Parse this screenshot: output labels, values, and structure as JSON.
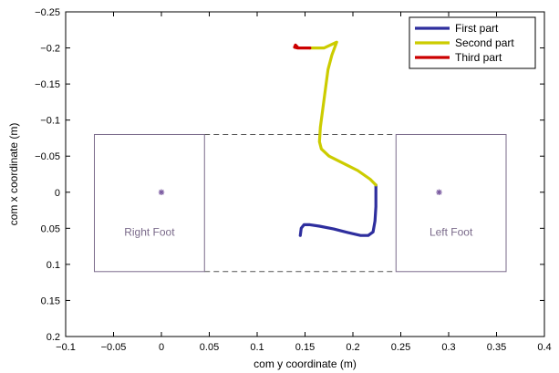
{
  "chart_data": {
    "type": "line",
    "xlabel": "com y coordinate (m)",
    "ylabel": "com x coordinate (m)",
    "xlim": [
      -0.1,
      0.4
    ],
    "ylim": [
      -0.25,
      0.2
    ],
    "y_reversed": true,
    "grid": false,
    "legend_position": "top-right",
    "x_ticks": [
      -0.1,
      -0.05,
      0,
      0.05,
      0.1,
      0.15,
      0.2,
      0.25,
      0.3,
      0.35,
      0.4
    ],
    "x_tick_labels": [
      "−0.1",
      "−0.05",
      "0",
      "0.05",
      "0.1",
      "0.15",
      "0.2",
      "0.25",
      "0.3",
      "0.35",
      "0.4"
    ],
    "y_ticks": [
      -0.25,
      -0.2,
      -0.15,
      -0.1,
      -0.05,
      0,
      0.05,
      0.1,
      0.15,
      0.2
    ],
    "y_tick_labels": [
      "−0.25",
      "−0.2",
      "−0.15",
      "−0.1",
      "−0.05",
      "0",
      "0.05",
      "0.1",
      "0.15",
      "0.2"
    ],
    "series": [
      {
        "name": "First part",
        "color": "#2e2e9e",
        "x": [
          0.145,
          0.146,
          0.149,
          0.155,
          0.165,
          0.18,
          0.195,
          0.208,
          0.216,
          0.221,
          0.223,
          0.224,
          0.224,
          0.224
        ],
        "y": [
          0.06,
          0.05,
          0.045,
          0.045,
          0.047,
          0.051,
          0.056,
          0.06,
          0.06,
          0.055,
          0.04,
          0.02,
          0.0,
          -0.01
        ]
      },
      {
        "name": "Second part",
        "color": "#cccc00",
        "x": [
          0.224,
          0.218,
          0.205,
          0.19,
          0.175,
          0.167,
          0.165,
          0.166,
          0.168,
          0.17,
          0.172,
          0.174,
          0.178,
          0.183,
          0.17,
          0.155
        ],
        "y": [
          -0.01,
          -0.018,
          -0.03,
          -0.04,
          -0.05,
          -0.06,
          -0.07,
          -0.09,
          -0.11,
          -0.13,
          -0.15,
          -0.17,
          -0.19,
          -0.208,
          -0.2,
          -0.2
        ]
      },
      {
        "name": "Third part",
        "color": "#cc0000",
        "x": [
          0.155,
          0.148,
          0.142,
          0.139,
          0.14,
          0.143
        ],
        "y": [
          -0.2,
          -0.2,
          -0.2,
          -0.201,
          -0.204,
          -0.2
        ]
      }
    ],
    "feet": [
      {
        "label": "Right Foot",
        "y_range": [
          -0.07,
          0.045
        ],
        "x_range": [
          -0.08,
          0.11
        ],
        "center": [
          0.0,
          0.0
        ]
      },
      {
        "label": "Left Foot",
        "y_range": [
          0.245,
          0.36
        ],
        "x_range": [
          -0.08,
          0.11
        ],
        "center": [
          0.29,
          0.0
        ]
      }
    ],
    "support_dashed_lines": [
      {
        "y_from": 0.045,
        "y_to": 0.245,
        "x": -0.08
      },
      {
        "y_from": 0.045,
        "y_to": 0.245,
        "x": 0.11
      }
    ],
    "colors": {
      "foot_box": "#7a6a8a",
      "foot_center": "#7a5aa0",
      "dashed": "#555555",
      "axes": "#000000"
    }
  }
}
